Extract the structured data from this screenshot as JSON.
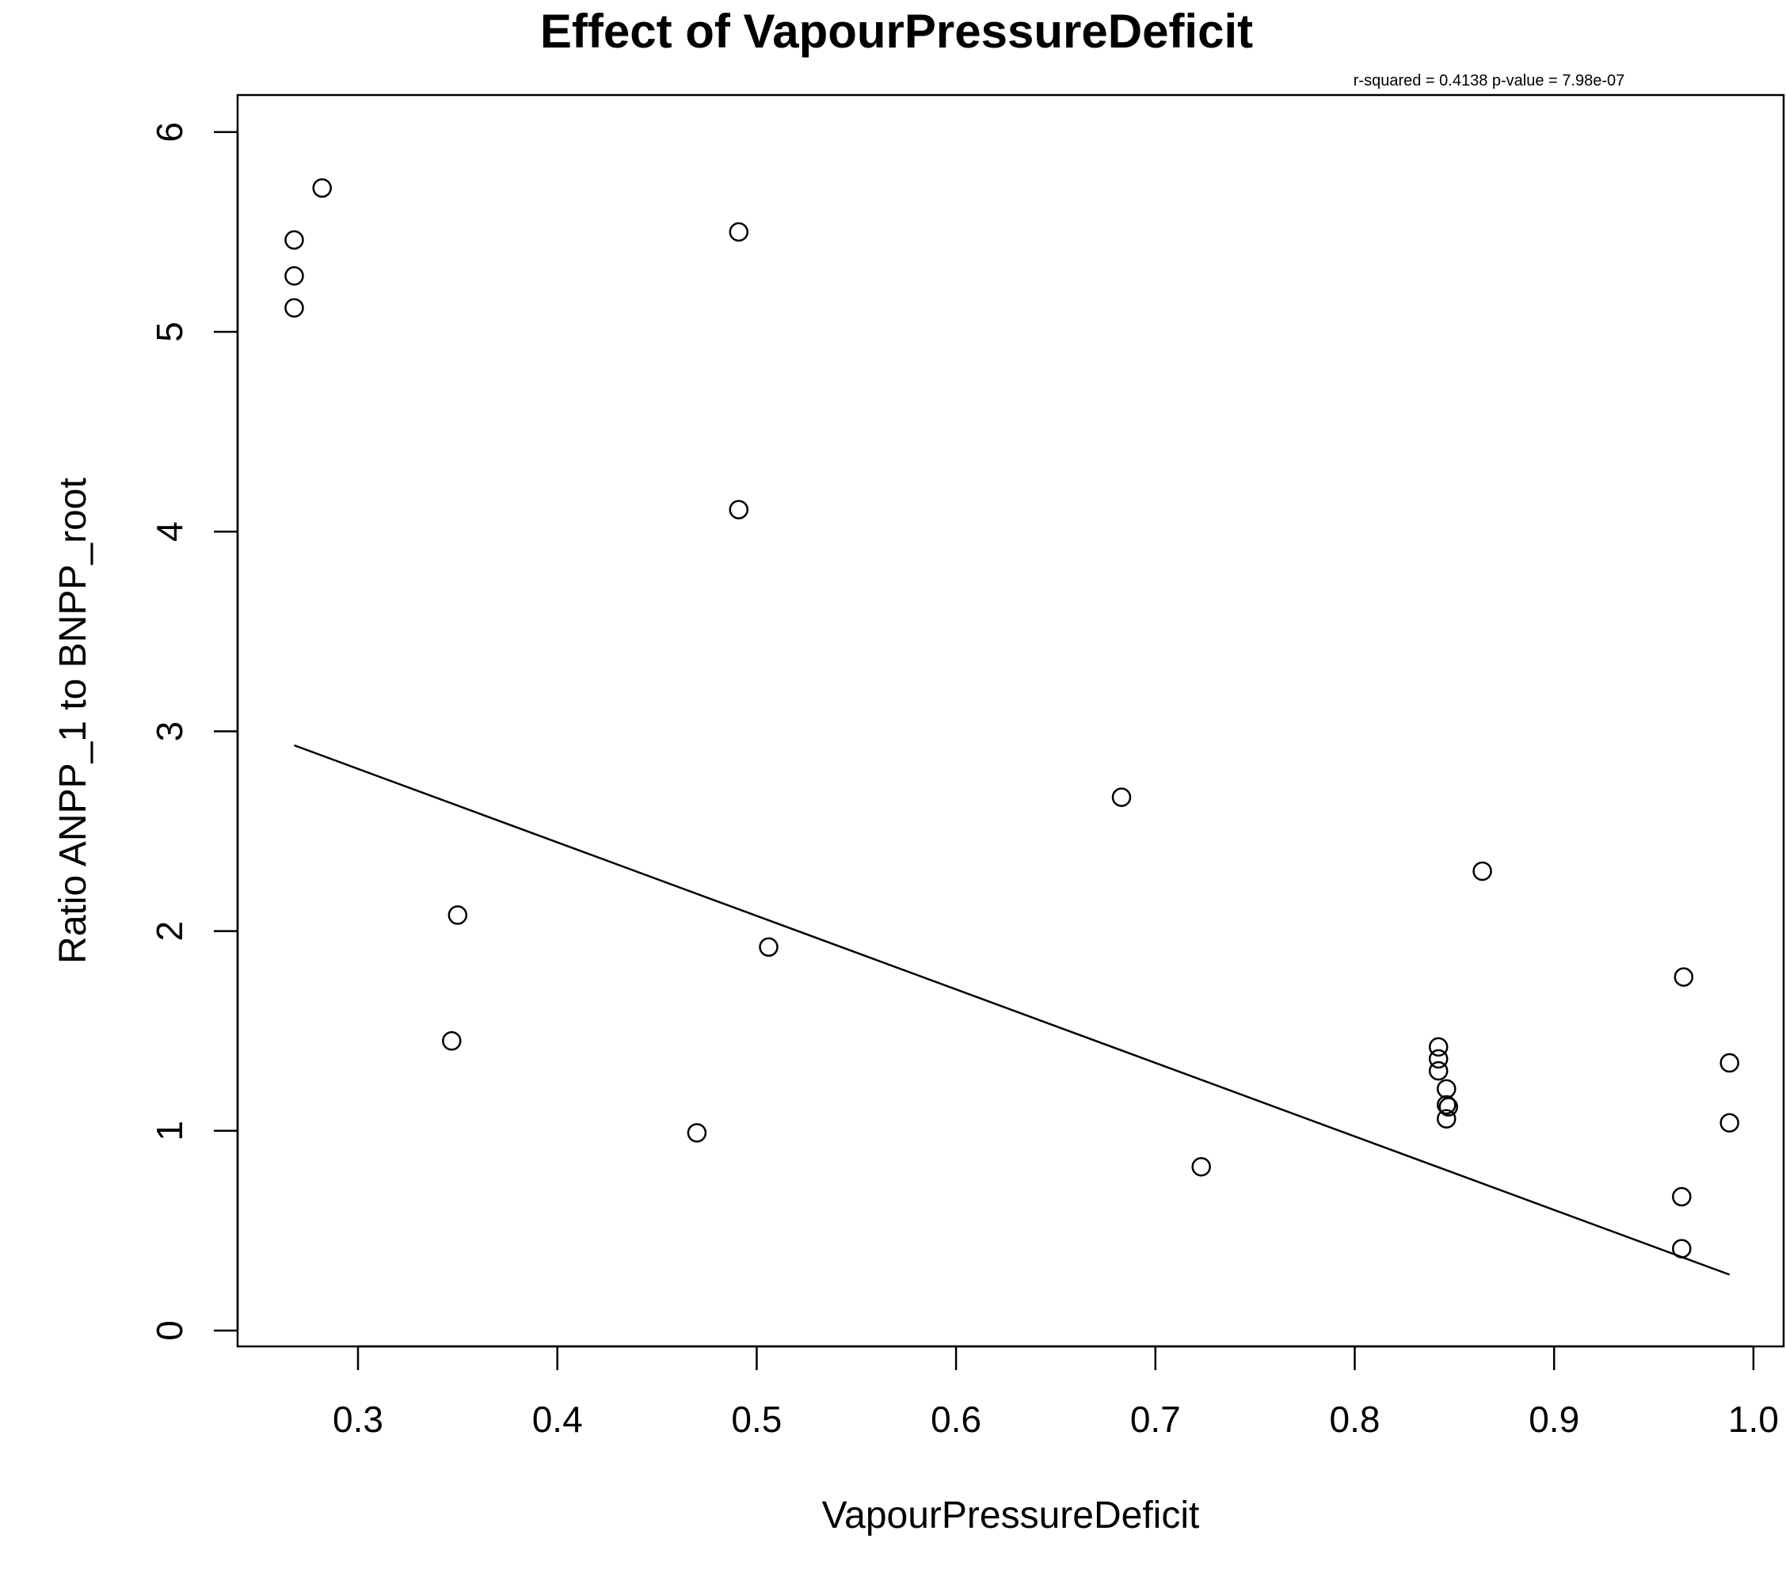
{
  "chart_data": {
    "type": "scatter",
    "title": "Effect of VapourPressureDeficit",
    "subtitle": "r-squared =  0.4138 p-value =  7.98e-07",
    "xlabel": "VapourPressureDeficit",
    "ylabel": "Ratio ANPP_1 to BNPP_root",
    "xlim": [
      0.24,
      1.0
    ],
    "ylim": [
      0,
      6
    ],
    "x_ticks": [
      0.3,
      0.4,
      0.5,
      0.6,
      0.7,
      0.8,
      0.9,
      1.0
    ],
    "x_tick_labels": [
      "0.3",
      "0.4",
      "0.5",
      "0.6",
      "0.7",
      "0.8",
      "0.9",
      "1.0"
    ],
    "y_ticks": [
      0,
      1,
      2,
      3,
      4,
      5,
      6
    ],
    "y_tick_labels": [
      "0",
      "1",
      "2",
      "3",
      "4",
      "5",
      "6"
    ],
    "grid": false,
    "legend": "none",
    "series": [
      {
        "marker": "open-circle",
        "points": [
          {
            "x": 0.268,
            "y": 5.46
          },
          {
            "x": 0.268,
            "y": 5.28
          },
          {
            "x": 0.268,
            "y": 5.12
          },
          {
            "x": 0.282,
            "y": 5.72
          },
          {
            "x": 0.347,
            "y": 1.45
          },
          {
            "x": 0.35,
            "y": 2.08
          },
          {
            "x": 0.47,
            "y": 0.99
          },
          {
            "x": 0.491,
            "y": 5.5
          },
          {
            "x": 0.491,
            "y": 4.11
          },
          {
            "x": 0.506,
            "y": 1.92
          },
          {
            "x": 0.683,
            "y": 2.67
          },
          {
            "x": 0.723,
            "y": 0.82
          },
          {
            "x": 0.842,
            "y": 1.42
          },
          {
            "x": 0.842,
            "y": 1.36
          },
          {
            "x": 0.842,
            "y": 1.3
          },
          {
            "x": 0.846,
            "y": 1.21
          },
          {
            "x": 0.846,
            "y": 1.13
          },
          {
            "x": 0.847,
            "y": 1.12
          },
          {
            "x": 0.846,
            "y": 1.06
          },
          {
            "x": 0.864,
            "y": 2.3
          },
          {
            "x": 0.964,
            "y": 0.67
          },
          {
            "x": 0.964,
            "y": 0.41
          },
          {
            "x": 0.965,
            "y": 1.77
          },
          {
            "x": 0.988,
            "y": 1.34
          },
          {
            "x": 0.988,
            "y": 1.04
          }
        ]
      }
    ],
    "fit_line": {
      "x": [
        0.268,
        0.988
      ],
      "y": [
        2.93,
        0.28
      ]
    }
  }
}
